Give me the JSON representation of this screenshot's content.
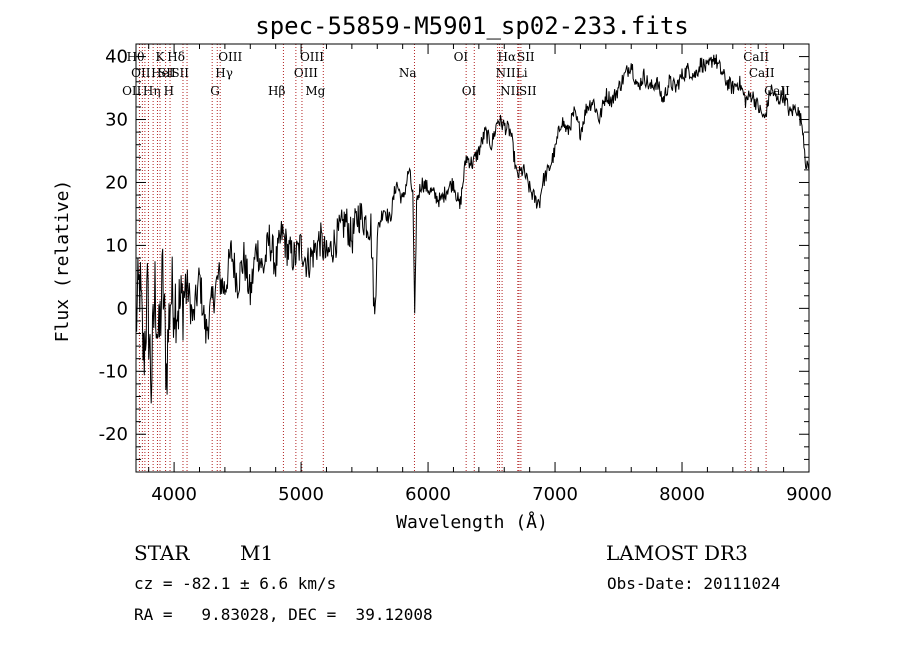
{
  "chart_data": {
    "type": "line",
    "title": "spec-55859-M5901_sp02-233.fits",
    "xlabel": "Wavelength (Å)",
    "ylabel": "Flux (relative)",
    "xlim": [
      3700,
      9000
    ],
    "ylim": [
      -26,
      42
    ],
    "x_ticks": [
      4000,
      5000,
      6000,
      7000,
      8000,
      9000
    ],
    "y_ticks": [
      -20,
      -10,
      0,
      10,
      20,
      30,
      40
    ],
    "grid": false,
    "line_color": "#000000",
    "marker_color": "#b22222",
    "series": [
      {
        "name": "spectrum",
        "x": [
          3700,
          3730,
          3760,
          3790,
          3820,
          3850,
          3880,
          3910,
          3940,
          3970,
          4000,
          4050,
          4100,
          4150,
          4200,
          4250,
          4300,
          4350,
          4400,
          4450,
          4500,
          4550,
          4600,
          4650,
          4700,
          4750,
          4800,
          4850,
          4900,
          4950,
          5000,
          5050,
          5100,
          5150,
          5200,
          5250,
          5300,
          5350,
          5400,
          5450,
          5500,
          5550,
          5580,
          5600,
          5650,
          5700,
          5750,
          5800,
          5850,
          5880,
          5895,
          5910,
          5950,
          6000,
          6050,
          6100,
          6150,
          6200,
          6250,
          6300,
          6350,
          6400,
          6450,
          6500,
          6550,
          6600,
          6650,
          6700,
          6750,
          6800,
          6850,
          6880,
          6900,
          6950,
          7000,
          7050,
          7100,
          7150,
          7200,
          7250,
          7300,
          7350,
          7400,
          7450,
          7500,
          7550,
          7600,
          7650,
          7700,
          7750,
          7800,
          7850,
          7900,
          7950,
          8000,
          8050,
          8100,
          8150,
          8200,
          8250,
          8300,
          8350,
          8400,
          8450,
          8500,
          8550,
          8600,
          8650,
          8700,
          8750,
          8800,
          8850,
          8900,
          8950,
          8980,
          9000
        ],
        "y": [
          -2,
          4,
          -8,
          2,
          -12,
          3,
          -6,
          5,
          -10,
          2,
          2,
          0,
          4,
          -2,
          5,
          -4,
          1,
          5,
          3,
          9,
          4,
          8,
          2,
          10,
          6,
          11,
          7,
          12,
          9,
          8,
          10,
          7,
          9,
          11,
          8,
          10,
          12,
          14,
          11,
          15,
          14,
          13,
          -2,
          12,
          16,
          14,
          20,
          17,
          22,
          18,
          -2,
          17,
          20,
          19,
          18,
          17,
          19,
          20,
          16,
          24,
          23,
          25,
          28,
          26,
          30,
          29,
          28,
          21,
          22,
          19,
          17,
          17,
          20,
          22,
          25,
          30,
          28,
          31,
          28,
          32,
          33,
          30,
          34,
          33,
          35,
          37,
          39,
          35,
          37,
          35,
          36,
          33,
          36,
          35,
          37,
          38,
          37,
          39,
          38,
          40,
          38,
          36,
          35,
          36,
          33,
          34,
          32,
          30,
          35,
          33,
          34,
          31,
          32,
          29,
          22,
          23
        ]
      }
    ],
    "line_markers": [
      {
        "w": 3727,
        "label": "OII",
        "row": 3,
        "ha": "end"
      },
      {
        "w": 3750,
        "label": "Hθ",
        "row": 1,
        "ha": "end"
      },
      {
        "w": 3770,
        "label": "Hη",
        "row": 3,
        "ha": "start"
      },
      {
        "w": 3798,
        "label": "OII",
        "row": 2,
        "ha": "end"
      },
      {
        "w": 3835,
        "label": "HeI",
        "row": 2,
        "ha": "start"
      },
      {
        "w": 3869,
        "label": "K",
        "row": 1,
        "ha": "start"
      },
      {
        "w": 3889,
        "label": "SII",
        "row": 2,
        "ha": "start"
      },
      {
        "w": 3933,
        "label": "H",
        "row": 3,
        "ha": "start"
      },
      {
        "w": 3968,
        "label": "",
        "row": 1,
        "ha": "start"
      },
      {
        "w": 4070,
        "label": "Hδ",
        "row": 1,
        "ha": "end"
      },
      {
        "w": 4102,
        "label": "SII",
        "row": 2,
        "ha": "end"
      },
      {
        "w": 4300,
        "label": "G",
        "row": 3,
        "ha": "start"
      },
      {
        "w": 4340,
        "label": "Hγ",
        "row": 2,
        "ha": "start"
      },
      {
        "w": 4363,
        "label": "OIII",
        "row": 1,
        "ha": "start"
      },
      {
        "w": 4861,
        "label": "Hβ",
        "row": 3,
        "ha": "end"
      },
      {
        "w": 4959,
        "label": "OIII",
        "row": 2,
        "ha": "start"
      },
      {
        "w": 5007,
        "label": "OIII",
        "row": 1,
        "ha": "start"
      },
      {
        "w": 5175,
        "label": "Mg",
        "row": 3,
        "ha": "end"
      },
      {
        "w": 5893,
        "label": "Na",
        "row": 2,
        "ha": "end"
      },
      {
        "w": 6300,
        "label": "OI",
        "row": 1,
        "ha": "end"
      },
      {
        "w": 6364,
        "label": "OI",
        "row": 3,
        "ha": "end"
      },
      {
        "w": 6548,
        "label": "NII",
        "row": 2,
        "ha": "start"
      },
      {
        "w": 6563,
        "label": "Hα",
        "row": 1,
        "ha": "start"
      },
      {
        "w": 6583,
        "label": "NII",
        "row": 3,
        "ha": "start"
      },
      {
        "w": 6707,
        "label": "Li",
        "row": 2,
        "ha": "start"
      },
      {
        "w": 6716,
        "label": "SII",
        "row": 1,
        "ha": "start"
      },
      {
        "w": 6731,
        "label": "SII",
        "row": 3,
        "ha": "start"
      },
      {
        "w": 8498,
        "label": "CaII",
        "row": 1,
        "ha": "start"
      },
      {
        "w": 8542,
        "label": "CaII",
        "row": 2,
        "ha": "start"
      },
      {
        "w": 8662,
        "label": "CaII",
        "row": 3,
        "ha": "start"
      }
    ]
  },
  "info": {
    "object_class": "STAR",
    "subclass": "M1",
    "survey": "LAMOST DR3",
    "redshift": "cz = -82.1 ± 6.6 km/s",
    "obs_date": "Obs-Date: 20111024",
    "coords": "RA =   9.83028, DEC =  39.12008"
  }
}
